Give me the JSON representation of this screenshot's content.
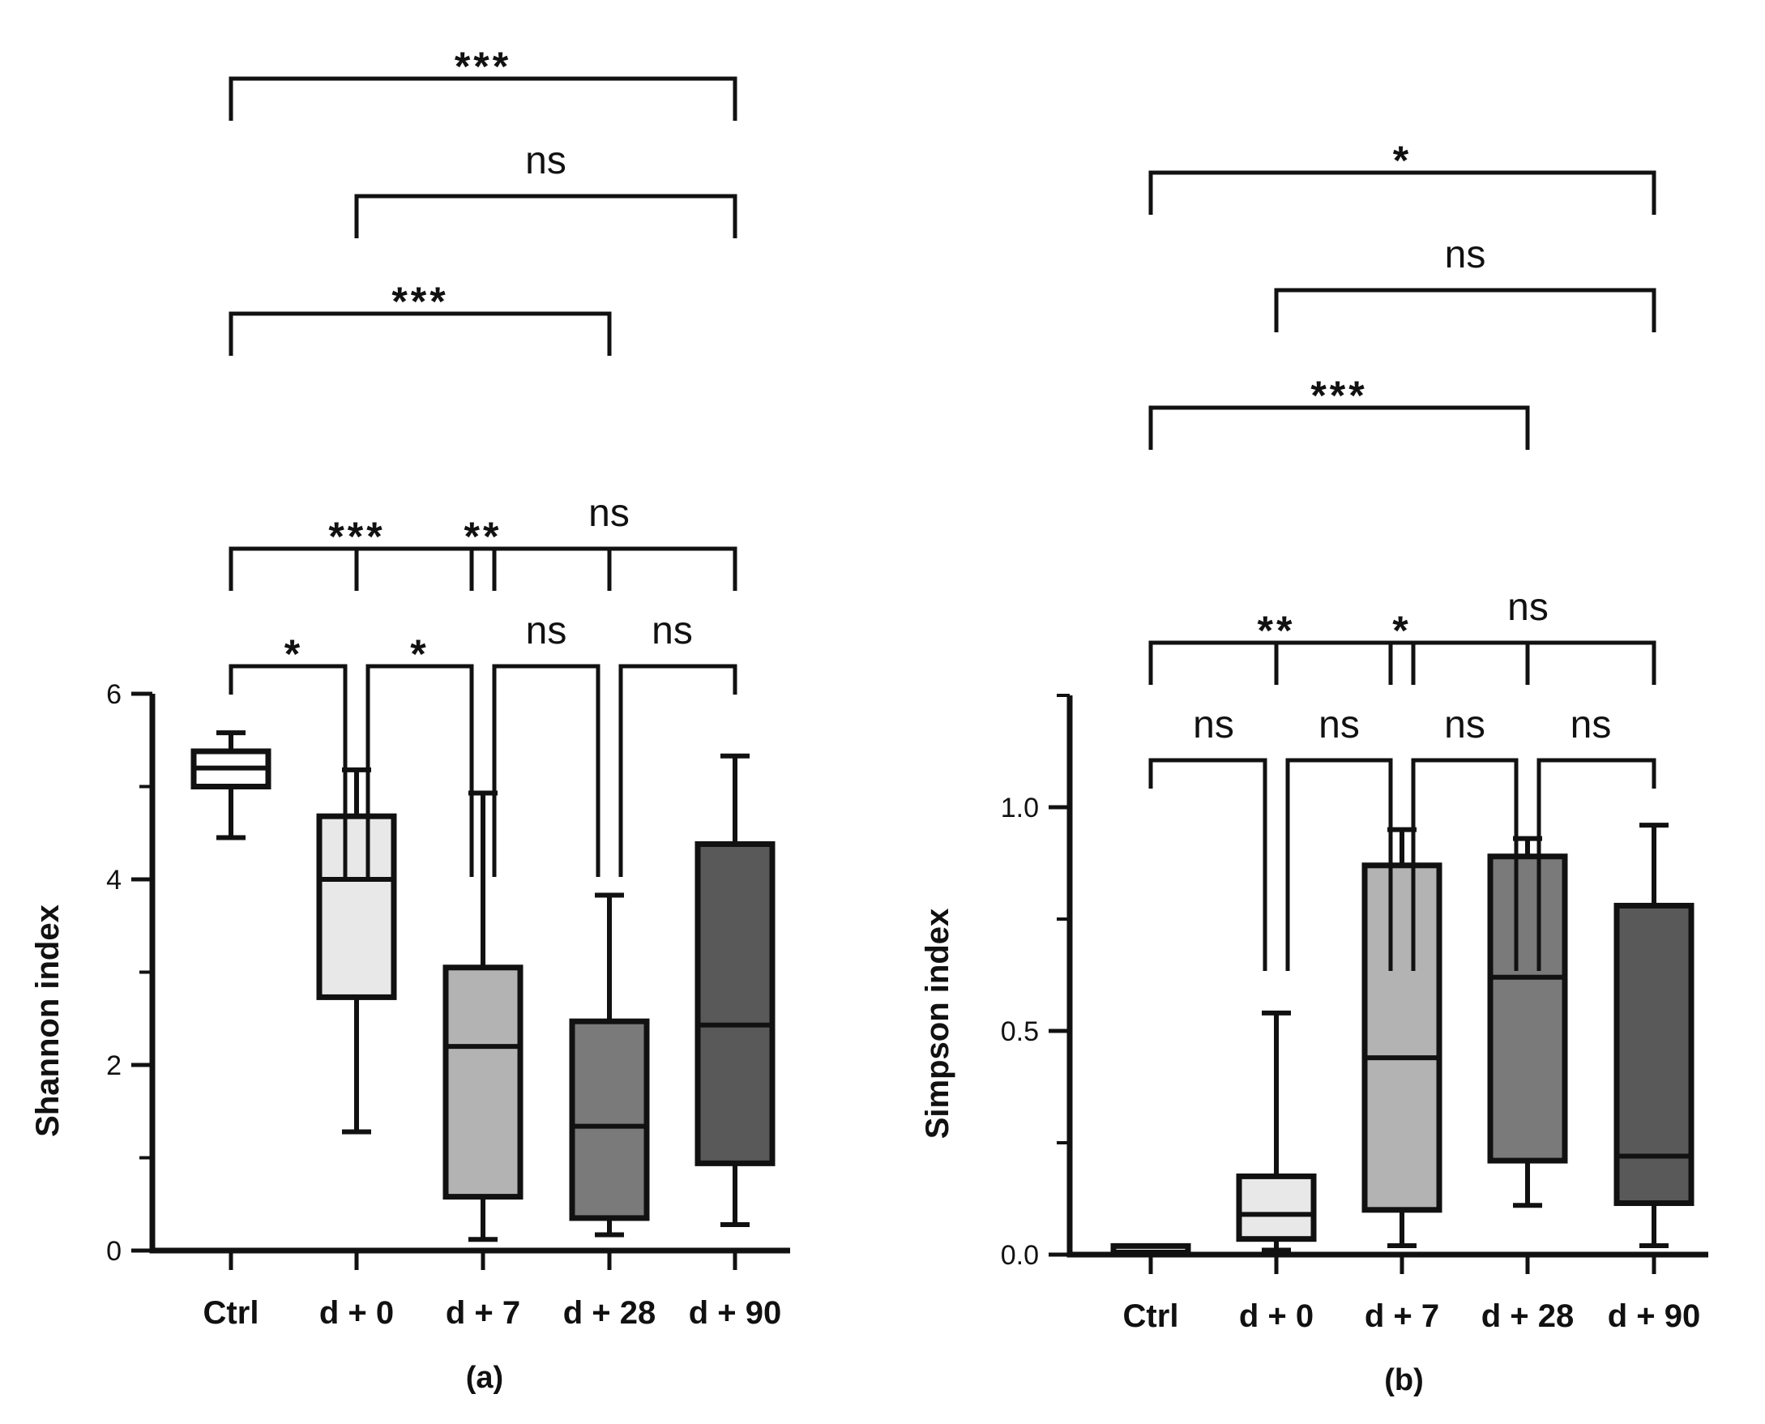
{
  "chart_data": [
    {
      "type": "box",
      "panel_label": "(a)",
      "ylabel": "Shannon index",
      "xlabel": "",
      "categories": [
        "Ctrl",
        "d + 0",
        "d + 7",
        "d + 28",
        "d + 90"
      ],
      "ylim": [
        0,
        6
      ],
      "yticks": [
        0,
        2,
        4,
        6
      ],
      "ytick_labels": [
        "0",
        "2",
        "4",
        "6"
      ],
      "grid": false,
      "boxes": [
        {
          "name": "Ctrl",
          "min": 4.45,
          "q1": 5.0,
          "median": 5.2,
          "q3": 5.38,
          "max": 5.58,
          "fill": "#ffffff"
        },
        {
          "name": "d + 0",
          "min": 1.28,
          "q1": 2.73,
          "median": 4.0,
          "q3": 4.68,
          "max": 5.18,
          "fill": "#e8e8e8"
        },
        {
          "name": "d + 7",
          "min": 0.12,
          "q1": 0.58,
          "median": 2.2,
          "q3": 3.05,
          "max": 4.93,
          "fill": "#b3b3b3"
        },
        {
          "name": "d + 28",
          "min": 0.17,
          "q1": 0.35,
          "median": 1.34,
          "q3": 2.47,
          "max": 3.83,
          "fill": "#7a7a7a"
        },
        {
          "name": "d + 90",
          "min": 0.28,
          "q1": 0.94,
          "median": 2.43,
          "q3": 4.38,
          "max": 5.33,
          "fill": "#595959"
        }
      ],
      "comparisons": [
        {
          "from": 0,
          "to": 1,
          "label": "*"
        },
        {
          "from": 1,
          "to": 2,
          "label": "*"
        },
        {
          "from": 2,
          "to": 3,
          "label": "ns"
        },
        {
          "from": 3,
          "to": 4,
          "label": "ns"
        },
        {
          "from": 0,
          "to": 2,
          "label": "***"
        },
        {
          "from": 2,
          "to": 4,
          "label": "ns"
        },
        {
          "from": 1,
          "to": 3,
          "label": "**"
        },
        {
          "from": 0,
          "to": 3,
          "label": "***"
        },
        {
          "from": 1,
          "to": 4,
          "label": "ns"
        },
        {
          "from": 0,
          "to": 4,
          "label": "***"
        }
      ]
    },
    {
      "type": "box",
      "panel_label": "(b)",
      "ylabel": "Simpson index",
      "xlabel": "",
      "categories": [
        "Ctrl",
        "d + 0",
        "d + 7",
        "d + 28",
        "d + 90"
      ],
      "ylim": [
        0,
        1.25
      ],
      "yticks": [
        0,
        0.5,
        1.0
      ],
      "ytick_labels": [
        "0.0",
        "0.5",
        "1.0"
      ],
      "grid": false,
      "boxes": [
        {
          "name": "Ctrl",
          "min": 0.005,
          "q1": 0.008,
          "median": 0.012,
          "q3": 0.016,
          "max": 0.02,
          "fill": "#ffffff"
        },
        {
          "name": "d + 0",
          "min": 0.01,
          "q1": 0.035,
          "median": 0.09,
          "q3": 0.175,
          "max": 0.54,
          "fill": "#e8e8e8"
        },
        {
          "name": "d + 7",
          "min": 0.02,
          "q1": 0.1,
          "median": 0.44,
          "q3": 0.87,
          "max": 0.95,
          "fill": "#b3b3b3"
        },
        {
          "name": "d + 28",
          "min": 0.11,
          "q1": 0.21,
          "median": 0.62,
          "q3": 0.89,
          "max": 0.93,
          "fill": "#7a7a7a"
        },
        {
          "name": "d + 90",
          "min": 0.02,
          "q1": 0.115,
          "median": 0.22,
          "q3": 0.78,
          "max": 0.96,
          "fill": "#595959"
        }
      ],
      "comparisons": [
        {
          "from": 0,
          "to": 1,
          "label": "ns"
        },
        {
          "from": 1,
          "to": 2,
          "label": "ns"
        },
        {
          "from": 2,
          "to": 3,
          "label": "ns"
        },
        {
          "from": 3,
          "to": 4,
          "label": "ns"
        },
        {
          "from": 0,
          "to": 2,
          "label": "**"
        },
        {
          "from": 2,
          "to": 4,
          "label": "ns"
        },
        {
          "from": 1,
          "to": 3,
          "label": "*"
        },
        {
          "from": 0,
          "to": 3,
          "label": "***"
        },
        {
          "from": 1,
          "to": 4,
          "label": "ns"
        },
        {
          "from": 0,
          "to": 4,
          "label": "*"
        }
      ]
    }
  ]
}
